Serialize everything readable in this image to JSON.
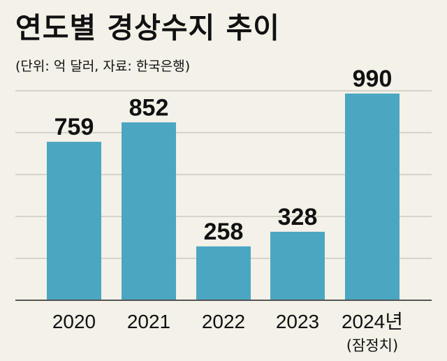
{
  "chart_data": {
    "type": "bar",
    "title": "연도별 경상수지 추이",
    "subtitle": "(단위: 억 달러, 자료: 한국은행)",
    "categories": [
      "2020",
      "2021",
      "2022",
      "2023",
      "2024년"
    ],
    "category_notes": [
      "",
      "",
      "",
      "",
      "(잠정치)"
    ],
    "values": [
      759,
      852,
      258,
      328,
      990
    ],
    "ylim": [
      0,
      1100
    ],
    "grid": true,
    "colors": {
      "bar": "#4ba6c1",
      "background": "#f4f1e8",
      "grid": "#b8b5ad",
      "axis": "#555555"
    }
  }
}
